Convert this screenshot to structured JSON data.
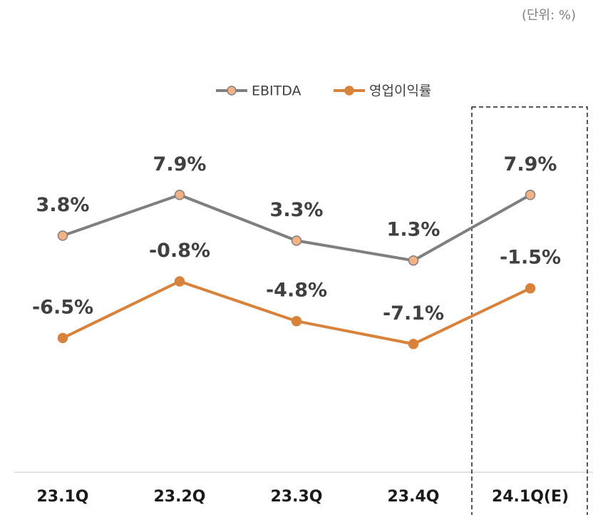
{
  "chart_data": {
    "type": "line",
    "unit_note": "(단위: %)",
    "categories": [
      "23.1Q",
      "23.2Q",
      "23.3Q",
      "23.4Q",
      "24.1Q(E)"
    ],
    "series": [
      {
        "name": "EBITDA",
        "color": "#7f7f7f",
        "marker_color": "#f4b183",
        "values": [
          3.8,
          7.9,
          3.3,
          1.3,
          7.9
        ],
        "value_labels": [
          "3.8%",
          "7.9%",
          "3.3%",
          "1.3%",
          "7.9%"
        ]
      },
      {
        "name": "영업이익률",
        "color": "#d9823b",
        "marker_color": "#d9823b",
        "values": [
          -6.5,
          -0.8,
          -4.8,
          -7.1,
          -1.5
        ],
        "value_labels": [
          "-6.5%",
          "-0.8%",
          "-4.8%",
          "-7.1%",
          "-1.5%"
        ]
      }
    ],
    "ylim": [
      -20,
      10
    ],
    "grid": false,
    "legend": "top",
    "highlight_category": 4
  }
}
